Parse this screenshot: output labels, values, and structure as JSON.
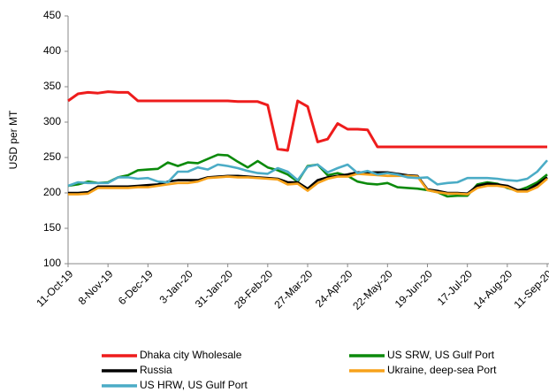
{
  "chart_data": {
    "type": "line",
    "y_label": "USD per MT",
    "categories": [
      "11-Oct-19",
      null,
      null,
      null,
      "8-Nov-19",
      null,
      null,
      null,
      "6-Dec-19",
      null,
      null,
      null,
      "3-Jan-20",
      null,
      null,
      null,
      "31-Jan-20",
      null,
      null,
      null,
      "28-Feb-20",
      null,
      null,
      null,
      "27-Mar-20",
      null,
      null,
      null,
      "24-Apr-20",
      null,
      null,
      null,
      "22-May-20",
      null,
      null,
      null,
      "19-Jun-20",
      null,
      null,
      null,
      "17-Jul-20",
      null,
      null,
      null,
      "14-Aug-20",
      null,
      null,
      null,
      "11-Sep-20"
    ],
    "series": [
      {
        "name": "Dhaka city Wholesale",
        "color": "#ee1c1c",
        "values": [
          330,
          340,
          342,
          341,
          343,
          342,
          342,
          330,
          330,
          330,
          330,
          330,
          330,
          330,
          330,
          330,
          330,
          329,
          329,
          329,
          324,
          262,
          260,
          330,
          322,
          272,
          276,
          298,
          290,
          290,
          289,
          265,
          265,
          265,
          265,
          265,
          265,
          265,
          265,
          265,
          265,
          265,
          265,
          265,
          265,
          265,
          265,
          265,
          265
        ]
      },
      {
        "name": "US SRW, US Gulf Port",
        "color": "#0b8a0b",
        "values": [
          210,
          212,
          216,
          214,
          215,
          222,
          225,
          232,
          233,
          234,
          243,
          238,
          243,
          242,
          248,
          254,
          253,
          244,
          236,
          245,
          236,
          232,
          226,
          216,
          238,
          240,
          225,
          228,
          224,
          216,
          213,
          212,
          214,
          208,
          207,
          206,
          204,
          201,
          195,
          196,
          196,
          212,
          215,
          213,
          207,
          203,
          208,
          215,
          226
        ]
      },
      {
        "name": "Russia",
        "color": "#000000",
        "values": [
          200,
          200,
          201,
          209,
          209,
          209,
          209,
          210,
          211,
          212,
          216,
          218,
          218,
          218,
          222,
          223,
          224,
          224,
          223,
          222,
          221,
          220,
          215,
          215,
          206,
          218,
          222,
          224,
          226,
          229,
          229,
          229,
          229,
          227,
          225,
          224,
          205,
          203,
          200,
          200,
          199,
          210,
          213,
          212,
          210,
          204,
          204,
          212,
          222
        ]
      },
      {
        "name": "Ukraine, deep-sea Port",
        "color": "#f7a21b",
        "values": [
          198,
          198,
          199,
          207,
          207,
          207,
          207,
          208,
          208,
          210,
          212,
          214,
          214,
          216,
          221,
          222,
          223,
          222,
          222,
          221,
          220,
          219,
          212,
          213,
          203,
          214,
          220,
          223,
          223,
          227,
          226,
          225,
          224,
          224,
          224,
          223,
          204,
          201,
          199,
          199,
          198,
          207,
          210,
          210,
          208,
          202,
          202,
          208,
          220
        ]
      },
      {
        "name": "US HRW, US Gulf Port",
        "color": "#4bacc6",
        "values": [
          210,
          215,
          214,
          214,
          214,
          222,
          222,
          220,
          221,
          216,
          215,
          230,
          230,
          236,
          233,
          240,
          238,
          235,
          231,
          228,
          227,
          235,
          230,
          218,
          237,
          240,
          229,
          235,
          240,
          228,
          231,
          226,
          228,
          226,
          222,
          221,
          222,
          212,
          214,
          215,
          221,
          221,
          221,
          220,
          218,
          217,
          220,
          230,
          246
        ]
      }
    ],
    "ylim": [
      100,
      450
    ],
    "yticks": [
      100,
      150,
      200,
      250,
      300,
      350,
      400,
      450
    ],
    "grid": false
  }
}
